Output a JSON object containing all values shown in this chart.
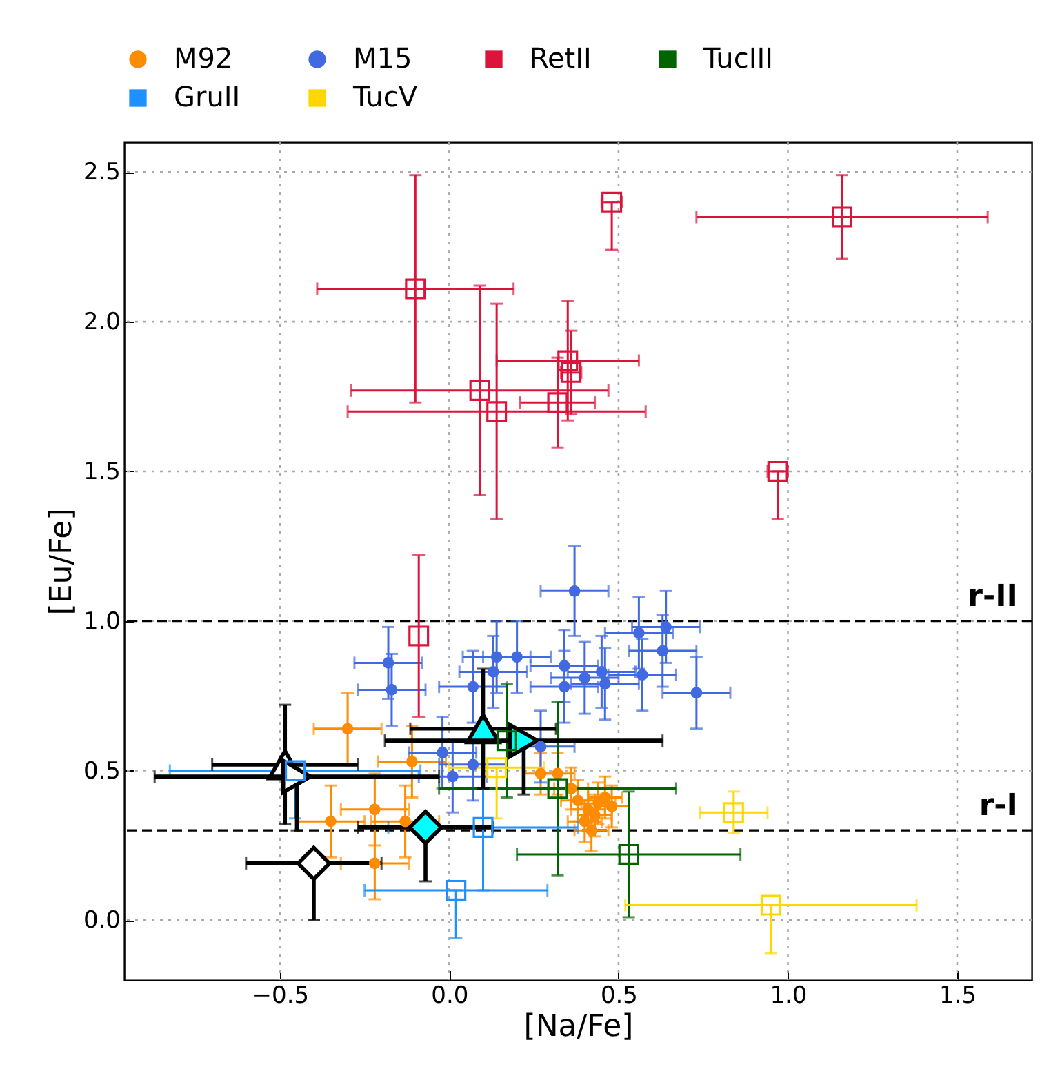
{
  "chart_data": {
    "type": "scatter",
    "xlabel": "[Na/Fe]",
    "ylabel": "[Eu/Fe]",
    "xlim": [
      -0.96,
      1.72
    ],
    "ylim": [
      -0.2,
      2.6
    ],
    "xticks": [
      {
        "value": -0.5,
        "label": "−0.5"
      },
      {
        "value": 0,
        "label": "0.0"
      },
      {
        "value": 0.5,
        "label": "0.5"
      },
      {
        "value": 1,
        "label": "1.0"
      },
      {
        "value": 1.5,
        "label": "1.5"
      }
    ],
    "yticks": [
      {
        "value": 0,
        "label": "0.0"
      },
      {
        "value": 0.5,
        "label": "0.5"
      },
      {
        "value": 1,
        "label": "1.0"
      },
      {
        "value": 1.5,
        "label": "1.5"
      },
      {
        "value": 2,
        "label": "2.0"
      },
      {
        "value": 2.5,
        "label": "2.5"
      }
    ],
    "grid": true,
    "legend": "top",
    "ref_lines": [
      {
        "axis": "y",
        "value": 1.0,
        "label": "r-II",
        "color": "#000000",
        "line_style": "dashed"
      },
      {
        "axis": "y",
        "value": 0.3,
        "label": "r-I",
        "color": "#000000",
        "line_style": "dashed"
      }
    ],
    "series": [
      {
        "name": "M92",
        "color": "#ff8c00",
        "marker": "circle",
        "x": [
          -0.3,
          -0.11,
          -0.22,
          -0.35,
          -0.13,
          -0.22,
          0.38,
          0.41,
          0.44,
          0.4,
          0.43,
          0.46,
          0.36,
          0.42,
          0.48,
          0.32,
          0.27
        ],
        "values": [
          0.64,
          0.53,
          0.37,
          0.33,
          0.33,
          0.19,
          0.4,
          0.37,
          0.39,
          0.33,
          0.35,
          0.41,
          0.44,
          0.3,
          0.38,
          0.49,
          0.49
        ],
        "errors": [
          0.12,
          0.12,
          0.12,
          0.12,
          0.12,
          0.12,
          0.07,
          0.07,
          0.07,
          0.07,
          0.07,
          0.07,
          0.07,
          0.07,
          0.07,
          0.07,
          0.07
        ],
        "xerrors": [
          0.1,
          0.1,
          0.1,
          0.1,
          0.1,
          0.1,
          0.05,
          0.05,
          0.05,
          0.05,
          0.05,
          0.05,
          0.05,
          0.05,
          0.05,
          0.05,
          0.05
        ]
      },
      {
        "name": "M15",
        "color": "#4169e1",
        "marker": "circle",
        "x": [
          0.37,
          0.56,
          0.64,
          0.63,
          0.73,
          0.57,
          0.34,
          0.45,
          0.4,
          0.34,
          0.46,
          0.14,
          0.2,
          0.13,
          0.07,
          -0.02,
          0.07,
          0.01,
          0.27,
          -0.18,
          -0.17
        ],
        "values": [
          1.1,
          0.96,
          0.98,
          0.9,
          0.76,
          0.82,
          0.85,
          0.83,
          0.81,
          0.78,
          0.79,
          0.88,
          0.88,
          0.83,
          0.78,
          0.56,
          0.52,
          0.48,
          0.58,
          0.86,
          0.77
        ],
        "errors": [
          0.15,
          0.12,
          0.12,
          0.12,
          0.12,
          0.12,
          0.12,
          0.12,
          0.12,
          0.12,
          0.12,
          0.12,
          0.12,
          0.12,
          0.12,
          0.12,
          0.12,
          0.12,
          0.12,
          0.12,
          0.12
        ],
        "xerrors": [
          0.1,
          0.1,
          0.1,
          0.1,
          0.1,
          0.1,
          0.1,
          0.1,
          0.1,
          0.1,
          0.1,
          0.1,
          0.1,
          0.1,
          0.1,
          0.1,
          0.1,
          0.1,
          0.1,
          0.1,
          0.1
        ]
      },
      {
        "name": "RetII",
        "color": "#dc143c",
        "marker": "square",
        "x": [
          -0.1,
          0.09,
          0.14,
          0.32,
          0.35,
          0.36,
          0.48,
          1.16,
          0.97,
          -0.09
        ],
        "values": [
          2.11,
          1.77,
          1.7,
          1.73,
          1.87,
          1.83,
          2.4,
          2.35,
          1.5,
          0.95
        ],
        "errors": [
          0.38,
          0.35,
          0.36,
          0.15,
          0.2,
          0.14,
          [
            2.24,
            2.4
          ],
          0.14,
          [
            1.34,
            1.5
          ],
          0.27
        ],
        "xerrors": [
          0.29,
          0.38,
          0.44,
          0.11,
          0.21,
          0.03,
          0.03,
          0.43,
          0.03,
          null
        ]
      },
      {
        "name": "TucIII",
        "color": "#006400",
        "marker": "square",
        "x": [
          0.32,
          0.53,
          0.17
        ],
        "values": [
          0.44,
          0.22,
          0.6
        ],
        "errors": [
          0.29,
          0.21,
          0.19
        ],
        "xerrors": [
          0.35,
          0.33,
          null
        ]
      },
      {
        "name": "GruII",
        "color": "#1e90ff",
        "marker": "square",
        "x": [
          0.1,
          0.02,
          -0.455
        ],
        "values": [
          0.31,
          0.1,
          0.5
        ],
        "errors": [
          0.21,
          [
            -0.06,
            0.1
          ],
          [
            0.34,
            0.5
          ]
        ],
        "xerrors": [
          0.28,
          0.27,
          0.37
        ]
      },
      {
        "name": "TucV",
        "color": "#ffd700",
        "marker": "square",
        "x": [
          0.84,
          0.95,
          0.14
        ],
        "values": [
          0.36,
          0.05,
          0.51
        ],
        "errors": [
          0.07,
          [
            -0.11,
            0.05
          ],
          [
            0.34,
            0.51
          ]
        ],
        "xerrors": [
          0.1,
          0.43,
          0.14
        ]
      },
      {
        "color": "#000000",
        "marker": "triangle",
        "x": [
          -0.485
        ],
        "values": [
          0.52
        ],
        "errors": [
          0.2
        ],
        "xerrors": [
          0.215
        ]
      },
      {
        "color": "#000000",
        "marker": "triangle-right",
        "x": [
          -0.45
        ],
        "values": [
          0.48
        ],
        "errors": [
          [
            0.3,
            0.48
          ]
        ],
        "xerrors": [
          0.42
        ]
      },
      {
        "color": "#000000",
        "marker": "diamond",
        "x": [
          -0.4
        ],
        "values": [
          0.19
        ],
        "errors": [
          [
            0.0,
            0.19
          ]
        ],
        "xerrors": [
          0.2
        ]
      },
      {
        "color": "#00ffff",
        "marker": "diamond",
        "x": [
          -0.07
        ],
        "values": [
          0.31
        ],
        "errors": [
          [
            0.13,
            0.31
          ]
        ],
        "xerrors": [
          0.2
        ]
      },
      {
        "color": "#00ffff",
        "marker": "triangle",
        "x": [
          0.1
        ],
        "values": [
          0.64
        ],
        "errors": [
          0.2
        ],
        "xerrors": [
          0.215
        ]
      },
      {
        "color": "#00ffff",
        "marker": "triangle-right",
        "x": [
          0.22
        ],
        "values": [
          0.6
        ],
        "errors": [
          [
            0.42,
            0.6
          ]
        ],
        "xerrors": [
          0.41
        ]
      }
    ]
  }
}
